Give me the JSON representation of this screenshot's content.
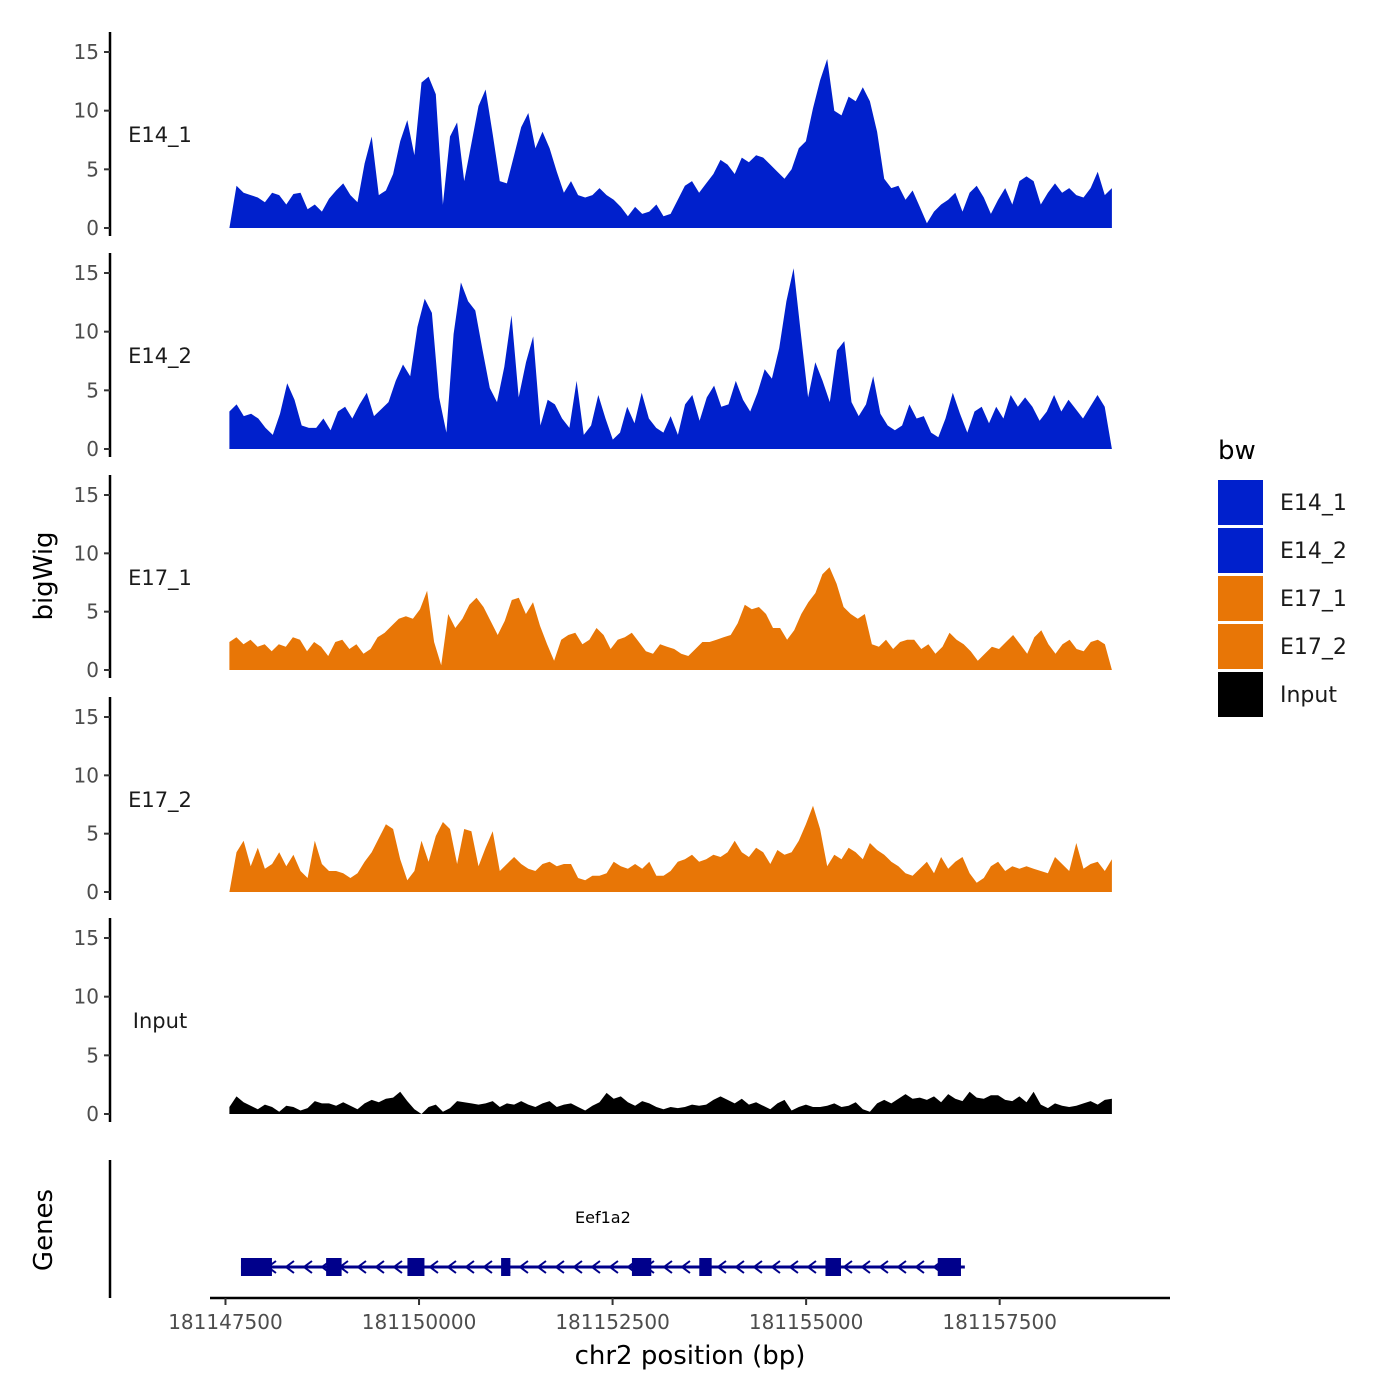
{
  "chart_data": {
    "type": "area",
    "y_axis_title": "bigWig",
    "x_axis_title": "chr2 position (bp)",
    "genes_axis_title": "Genes",
    "xlim": [
      181147300,
      181159700
    ],
    "data_range": [
      181147550,
      181158950
    ],
    "ylim": [
      0,
      16
    ],
    "y_ticks": [
      0,
      5,
      10,
      15
    ],
    "x_ticks": [
      181147500,
      181150000,
      181152500,
      181155000,
      181157500
    ],
    "x_tick_labels": [
      "181147500",
      "181150000",
      "181152500",
      "181155000",
      "181157500"
    ],
    "legend": {
      "title": "bw",
      "entries": [
        {
          "name": "E14_1",
          "color": "#0020cc"
        },
        {
          "name": "E14_2",
          "color": "#0020cc"
        },
        {
          "name": "E17_1",
          "color": "#e87606"
        },
        {
          "name": "E17_2",
          "color": "#e87606"
        },
        {
          "name": "Input",
          "color": "#000000"
        }
      ]
    },
    "tracks": [
      {
        "name": "E14_1",
        "color": "#0020cc",
        "values": [
          0.0,
          3.6,
          3.0,
          2.8,
          2.6,
          2.2,
          3.0,
          2.8,
          2.0,
          2.9,
          3.0,
          1.6,
          2.0,
          1.4,
          2.5,
          3.2,
          3.8,
          2.8,
          2.2,
          5.5,
          7.8,
          2.8,
          3.2,
          4.6,
          7.4,
          9.2,
          6.2,
          12.4,
          12.9,
          11.4,
          2.0,
          7.8,
          9.0,
          4.0,
          7.2,
          10.4,
          11.8,
          8.0,
          4.0,
          3.8,
          6.2,
          8.6,
          9.8,
          6.8,
          8.2,
          6.8,
          4.8,
          3.0,
          4.0,
          2.8,
          2.6,
          2.8,
          3.4,
          2.8,
          2.4,
          1.8,
          1.0,
          1.8,
          1.2,
          1.4,
          2.0,
          1.0,
          1.2,
          2.4,
          3.6,
          4.0,
          3.0,
          3.8,
          4.6,
          5.8,
          5.4,
          4.6,
          6.0,
          5.6,
          6.2,
          6.0,
          5.4,
          4.8,
          4.2,
          5.0,
          6.8,
          7.4,
          10.2,
          12.6,
          14.4,
          10.0,
          9.6,
          11.2,
          10.8,
          12.0,
          10.8,
          8.2,
          4.2,
          3.4,
          3.6,
          2.4,
          3.2,
          1.8,
          0.4,
          1.4,
          2.0,
          2.4,
          3.0,
          1.4,
          3.0,
          3.6,
          2.6,
          1.2,
          2.4,
          3.4,
          2.0,
          4.0,
          4.4,
          4.0,
          2.0,
          3.0,
          3.8,
          3.0,
          3.4,
          2.8,
          2.6,
          3.4,
          4.8,
          2.8,
          3.4
        ]
      },
      {
        "name": "E14_2",
        "color": "#0020cc",
        "values": [
          3.2,
          3.8,
          2.8,
          3.0,
          2.6,
          1.8,
          1.2,
          3.0,
          5.6,
          4.2,
          2.0,
          1.8,
          1.8,
          2.6,
          1.6,
          3.2,
          3.6,
          2.6,
          3.8,
          4.8,
          2.8,
          3.4,
          4.0,
          5.8,
          7.2,
          6.2,
          10.4,
          12.8,
          11.6,
          4.4,
          1.4,
          9.8,
          14.2,
          12.6,
          11.8,
          8.4,
          5.2,
          4.0,
          7.0,
          11.4,
          4.4,
          7.4,
          9.6,
          2.0,
          4.2,
          3.8,
          2.6,
          1.8,
          5.8,
          1.2,
          2.0,
          4.6,
          2.6,
          0.8,
          1.4,
          3.6,
          2.2,
          4.8,
          2.6,
          1.8,
          1.4,
          2.8,
          1.2,
          3.8,
          4.6,
          2.4,
          4.4,
          5.4,
          3.6,
          3.8,
          5.8,
          4.2,
          3.2,
          4.8,
          6.8,
          6.0,
          8.6,
          12.6,
          15.4,
          9.8,
          4.4,
          7.4,
          5.8,
          4.0,
          8.4,
          9.2,
          4.0,
          2.8,
          3.8,
          6.2,
          3.0,
          2.0,
          1.6,
          2.0,
          3.8,
          2.6,
          2.8,
          1.4,
          1.0,
          2.6,
          4.8,
          3.0,
          1.4,
          3.2,
          3.6,
          2.2,
          3.6,
          2.6,
          4.6,
          3.6,
          4.4,
          3.6,
          2.4,
          3.2,
          4.6,
          3.2,
          4.2,
          3.4,
          2.6,
          3.6,
          4.6,
          3.6,
          0.0
        ]
      },
      {
        "name": "E17_1",
        "color": "#e87606",
        "values": [
          2.4,
          2.8,
          2.2,
          2.6,
          2.0,
          2.2,
          1.6,
          2.2,
          2.0,
          2.8,
          2.6,
          1.6,
          2.4,
          2.0,
          1.2,
          2.4,
          2.6,
          1.8,
          2.2,
          1.4,
          1.8,
          2.8,
          3.2,
          3.8,
          4.4,
          4.6,
          4.4,
          5.2,
          6.8,
          2.4,
          0.4,
          4.8,
          3.6,
          4.4,
          5.6,
          6.2,
          5.4,
          4.2,
          3.0,
          4.2,
          6.0,
          6.2,
          4.8,
          5.8,
          3.8,
          2.2,
          0.8,
          2.6,
          3.0,
          3.2,
          2.2,
          2.6,
          3.6,
          3.0,
          1.8,
          2.6,
          2.8,
          3.2,
          2.4,
          1.6,
          1.4,
          2.2,
          2.0,
          1.8,
          1.4,
          1.2,
          1.8,
          2.4,
          2.4,
          2.6,
          2.8,
          3.0,
          4.0,
          5.6,
          5.2,
          5.4,
          4.8,
          3.6,
          3.6,
          2.6,
          3.4,
          4.8,
          5.8,
          6.6,
          8.2,
          8.8,
          7.4,
          5.4,
          4.8,
          4.4,
          4.8,
          2.2,
          2.0,
          2.6,
          1.8,
          2.4,
          2.6,
          2.6,
          1.8,
          2.2,
          1.4,
          2.0,
          3.2,
          2.6,
          2.2,
          1.6,
          0.8,
          1.4,
          2.0,
          1.8,
          2.4,
          3.0,
          2.2,
          1.4,
          2.8,
          3.4,
          2.2,
          1.4,
          2.2,
          2.6,
          1.8,
          1.6,
          2.4,
          2.6,
          2.2,
          0.0
        ]
      },
      {
        "name": "E17_2",
        "color": "#e87606",
        "values": [
          0.0,
          3.4,
          4.4,
          2.2,
          3.8,
          2.0,
          2.4,
          3.4,
          2.2,
          3.2,
          1.8,
          1.2,
          4.4,
          2.4,
          1.8,
          1.8,
          1.6,
          1.2,
          1.6,
          2.6,
          3.4,
          4.6,
          5.8,
          5.4,
          2.8,
          1.0,
          1.8,
          4.4,
          2.6,
          4.8,
          6.0,
          5.4,
          2.4,
          5.4,
          5.2,
          2.2,
          3.8,
          5.2,
          1.8,
          2.4,
          3.0,
          2.4,
          2.0,
          1.8,
          2.4,
          2.6,
          2.2,
          2.4,
          2.4,
          1.2,
          1.0,
          1.4,
          1.4,
          1.6,
          2.6,
          2.2,
          2.0,
          2.4,
          2.0,
          2.6,
          1.4,
          1.4,
          1.8,
          2.6,
          2.8,
          3.2,
          2.6,
          2.8,
          3.2,
          3.0,
          3.4,
          4.4,
          3.4,
          3.0,
          3.8,
          3.4,
          2.4,
          3.6,
          3.2,
          3.4,
          4.4,
          5.8,
          7.4,
          5.4,
          2.2,
          3.2,
          2.8,
          3.8,
          3.4,
          2.8,
          4.2,
          3.6,
          3.2,
          2.6,
          2.2,
          1.6,
          1.4,
          2.0,
          2.6,
          1.6,
          3.0,
          2.0,
          2.6,
          3.0,
          1.6,
          0.8,
          1.2,
          2.2,
          2.6,
          1.8,
          2.2,
          2.0,
          2.2,
          2.0,
          1.8,
          1.6,
          3.0,
          2.4,
          1.8,
          4.2,
          2.0,
          2.4,
          2.6,
          1.8,
          2.8
        ]
      },
      {
        "name": "Input",
        "color": "#000000",
        "values": [
          0.6,
          1.5,
          1.0,
          0.7,
          0.4,
          0.8,
          0.6,
          0.2,
          0.7,
          0.6,
          0.3,
          0.5,
          1.1,
          0.9,
          0.9,
          0.7,
          1.0,
          0.7,
          0.4,
          0.9,
          1.2,
          1.0,
          1.3,
          1.4,
          1.9,
          1.1,
          0.4,
          0.0,
          0.6,
          0.8,
          0.2,
          0.5,
          1.1,
          1.0,
          0.9,
          0.8,
          0.9,
          1.1,
          0.6,
          0.9,
          0.8,
          1.1,
          0.8,
          0.6,
          0.9,
          1.1,
          0.6,
          0.8,
          0.9,
          0.6,
          0.3,
          0.7,
          1.0,
          1.8,
          1.3,
          1.5,
          1.0,
          0.7,
          1.1,
          0.9,
          0.6,
          0.4,
          0.6,
          0.5,
          0.6,
          0.8,
          0.7,
          0.8,
          1.2,
          1.5,
          1.2,
          0.9,
          1.3,
          0.8,
          1.0,
          0.7,
          0.4,
          0.9,
          1.2,
          0.3,
          0.6,
          0.8,
          0.6,
          0.6,
          0.7,
          0.9,
          0.6,
          0.7,
          1.0,
          0.4,
          0.2,
          0.9,
          1.2,
          0.9,
          1.3,
          1.7,
          1.3,
          1.4,
          1.2,
          1.5,
          1.0,
          1.7,
          1.3,
          1.1,
          1.9,
          1.4,
          1.3,
          1.6,
          1.6,
          1.2,
          1.1,
          1.5,
          1.0,
          1.9,
          0.8,
          0.5,
          0.9,
          0.7,
          0.6,
          0.7,
          0.9,
          1.1,
          0.8,
          1.2,
          1.3
        ]
      }
    ],
    "gene": {
      "name": "Eef1a2",
      "start": 181147700,
      "end": 181157050,
      "strand": "-",
      "exons": [
        [
          181147700,
          181148100
        ],
        [
          181148800,
          181149000
        ],
        [
          181149850,
          181150070
        ],
        [
          181151060,
          181151180
        ],
        [
          181152750,
          181153000
        ],
        [
          181153620,
          181153780
        ],
        [
          181155250,
          181155450
        ],
        [
          181156700,
          181157000
        ]
      ]
    }
  }
}
